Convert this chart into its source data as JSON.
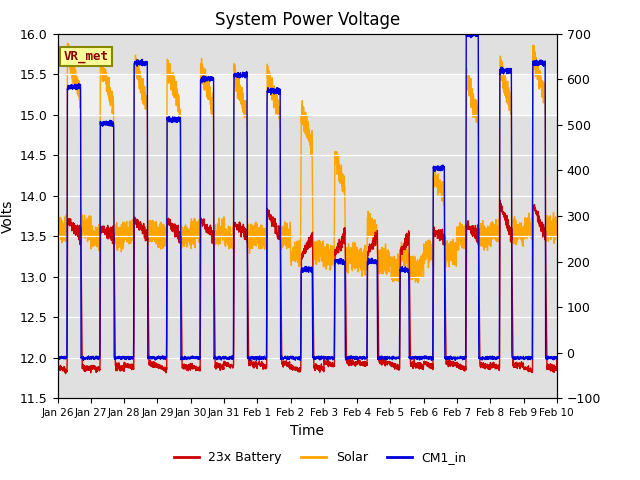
{
  "title": "System Power Voltage",
  "xlabel": "Time",
  "ylabel_left": "Volts",
  "ylim_left": [
    11.5,
    16.0
  ],
  "ylim_right": [
    -100,
    700
  ],
  "background_color": "#ffffff",
  "plot_bg_color": "#e0e0e0",
  "shaded_band": [
    15.0,
    15.5
  ],
  "series": {
    "battery": {
      "label": "23x Battery",
      "color": "#cc0000",
      "lw": 1.0
    },
    "solar": {
      "label": "Solar",
      "color": "#ffa500",
      "lw": 1.0
    },
    "cm1": {
      "label": "CM1_in",
      "color": "#0000dd",
      "lw": 1.0
    }
  },
  "annotation": {
    "text": "VR_met",
    "fontsize": 9,
    "color": "#8b0000",
    "bg": "#ffff99",
    "edgecolor": "#888800"
  },
  "xtick_labels": [
    "Jan 26",
    "Jan 27",
    "Jan 28",
    "Jan 29",
    "Jan 30",
    "Jan 31",
    "Feb 1",
    "Feb 2",
    "Feb 3",
    "Feb 4",
    "Feb 5",
    "Feb 6",
    "Feb 7",
    "Feb 8",
    "Feb 9",
    "Feb 10"
  ],
  "yticks_left": [
    11.5,
    12.0,
    12.5,
    13.0,
    13.5,
    14.0,
    14.5,
    15.0,
    15.5,
    16.0
  ],
  "yticks_right": [
    -100,
    0,
    100,
    200,
    300,
    400,
    500,
    600,
    700
  ],
  "num_days": 15,
  "seed": 7
}
